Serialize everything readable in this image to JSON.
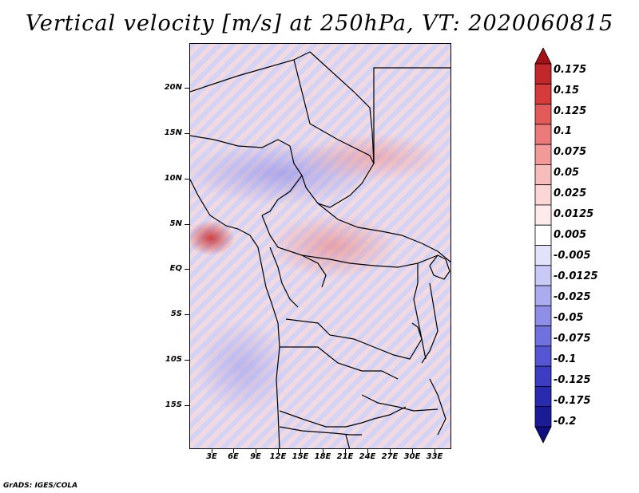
{
  "title": "Vertical velocity [m/s] at 250hPa, VT: 2020060815",
  "credit": "GrADS: IGES/COLA",
  "lat_labels": [
    "20N",
    "15N",
    "10N",
    "5N",
    "EQ",
    "5S",
    "10S",
    "15S"
  ],
  "lon_labels": [
    "3E",
    "6E",
    "9E",
    "12E",
    "15E",
    "18E",
    "21E",
    "24E",
    "27E",
    "30E",
    "33E"
  ],
  "colorbar": {
    "colors": [
      "#a50f15",
      "#c2272b",
      "#d63a3a",
      "#e35a5a",
      "#ec7a7a",
      "#f29a9a",
      "#f7bcbc",
      "#fbd6d6",
      "#fdeaea",
      "#ffffff",
      "#e2e2fb",
      "#c9c9f6",
      "#ababf0",
      "#8e8ee8",
      "#7070df",
      "#5656d4",
      "#3d3dc4",
      "#2a2ab0",
      "#1b1b98",
      "#0e0e7e"
    ],
    "labels": [
      "0.175",
      "0.15",
      "0.125",
      "0.1",
      "0.075",
      "0.05",
      "0.025",
      "0.0125",
      "0.005",
      "-0.005",
      "-0.0125",
      "-0.025",
      "-0.05",
      "-0.075",
      "-0.1",
      "-0.125",
      "-0.175",
      "-0.2"
    ]
  }
}
